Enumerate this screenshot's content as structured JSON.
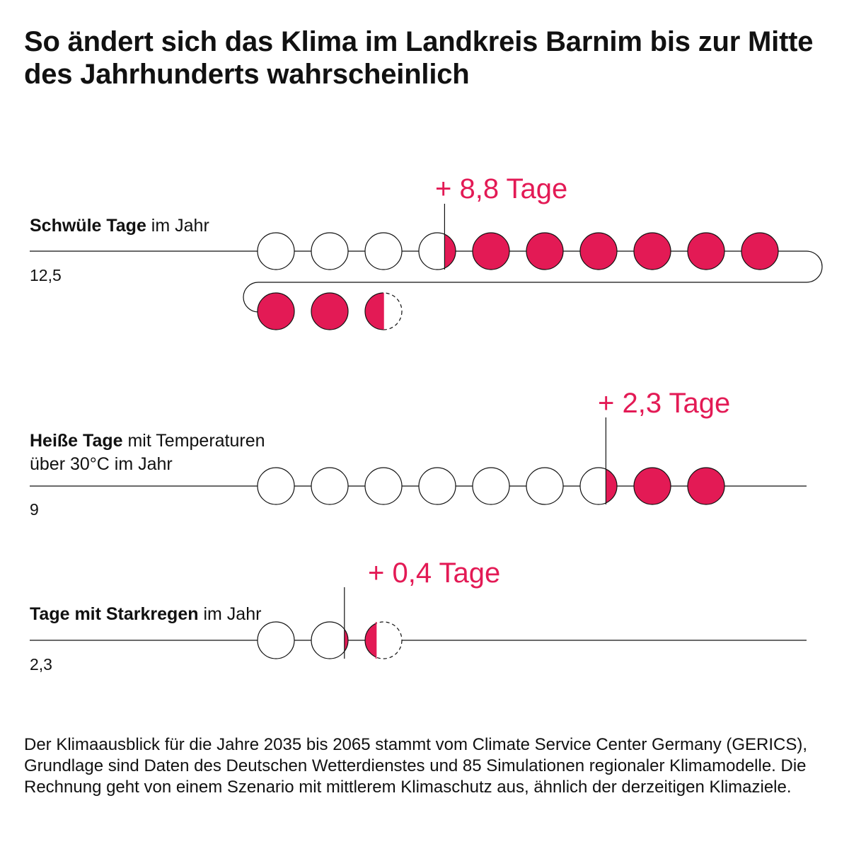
{
  "title": "So ändert sich das Klima im Landkreis Barnim bis zur Mitte des Jahrhunderts wahrscheinlich",
  "colors": {
    "accent": "#e31a55",
    "line": "#111111"
  },
  "chart_data": {
    "type": "pictogram",
    "unit": "Tage",
    "rows": [
      {
        "label_bold": "Schwüle Tage",
        "label_rest": " im Jahr",
        "label_line2": "",
        "total": 12.5,
        "total_label": "12,5",
        "increase": 8.8,
        "increase_label": "+ 8,8 Tage"
      },
      {
        "label_bold": "Heiße Tage",
        "label_rest": " mit Temperaturen",
        "label_line2": "über 30°C  im Jahr",
        "total": 9,
        "total_label": "9",
        "increase": 2.3,
        "increase_label": "+ 2,3 Tage"
      },
      {
        "label_bold": "Tage mit Starkregen",
        "label_rest": " im Jahr",
        "label_line2": "",
        "total": 2.3,
        "total_label": "2,3",
        "increase": 0.4,
        "increase_label": "+ 0,4 Tage"
      }
    ]
  },
  "footnote": "Der Klimaausblick für die Jahre 2035 bis 2065 stammt vom Climate Service Center Germany (GERICS), Grundlage sind Daten des Deutschen Wetterdienstes und 85 Simulationen regionaler Klimamodelle. Die Rechnung geht von einem Szenario mit mittlerem Klimaschutz aus, ähnlich der derzeitigen Klimaziele."
}
